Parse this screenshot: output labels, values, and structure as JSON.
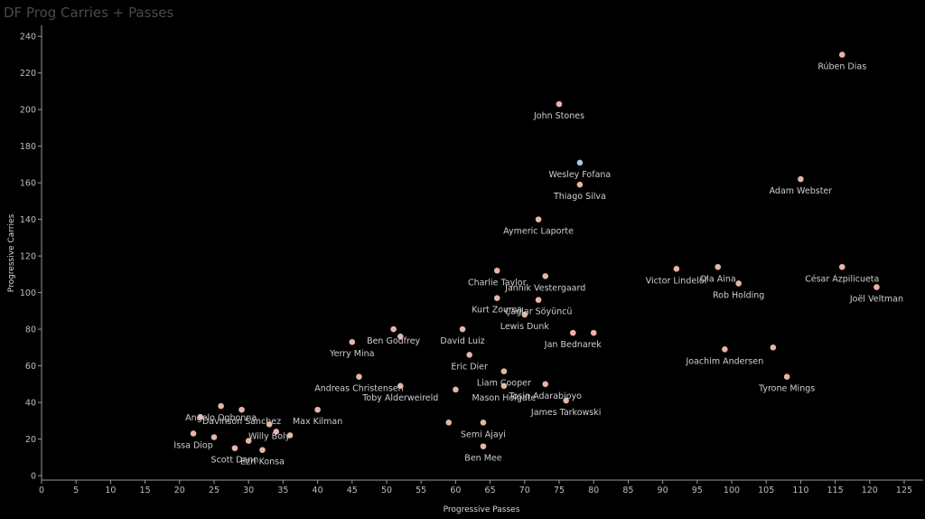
{
  "chart_data": {
    "type": "scatter",
    "title": "DF Prog Carries + Passes",
    "xlabel": "Progressive Passes",
    "ylabel": "Progressive Carries",
    "xlim": [
      0,
      127
    ],
    "ylim": [
      0,
      245
    ],
    "xticks": [
      0,
      5,
      10,
      15,
      20,
      25,
      30,
      35,
      40,
      45,
      50,
      55,
      60,
      65,
      70,
      75,
      80,
      85,
      90,
      95,
      100,
      105,
      110,
      115,
      120,
      125
    ],
    "yticks": [
      0,
      20,
      40,
      60,
      80,
      100,
      120,
      140,
      160,
      180,
      200,
      220,
      240
    ],
    "grid": false,
    "colors": {
      "point": "#e8b4a6",
      "highlight": "#9cc8ec",
      "background": "#000000"
    },
    "points": [
      {
        "label": "Rúben Dias",
        "x": 116,
        "y": 230,
        "color": "#e8b4a6"
      },
      {
        "label": "John Stones",
        "x": 75,
        "y": 203,
        "color": "#e8b4a6"
      },
      {
        "label": "Wesley Fofana",
        "x": 78,
        "y": 171,
        "color": "#9cc8ec"
      },
      {
        "label": "Thiago Silva",
        "x": 78,
        "y": 159,
        "color": "#e8b4a6"
      },
      {
        "label": "Adam Webster",
        "x": 110,
        "y": 162,
        "color": "#e8b4a6"
      },
      {
        "label": "Aymeric Laporte",
        "x": 72,
        "y": 140,
        "color": "#e8b4a6"
      },
      {
        "label": "Victor Lindelöf",
        "x": 92,
        "y": 113,
        "color": "#e8b4a6"
      },
      {
        "label": "Ola Aina",
        "x": 98,
        "y": 114,
        "color": "#e8b4a6"
      },
      {
        "label": "César Azpilicueta",
        "x": 116,
        "y": 114,
        "color": "#e8b4a6"
      },
      {
        "label": "Jannik Vestergaard",
        "x": 73,
        "y": 109,
        "color": "#e8b4a6"
      },
      {
        "label": "Charlie Taylor",
        "x": 66,
        "y": 112,
        "color": "#e8b4a6"
      },
      {
        "label": "Rob Holding",
        "x": 101,
        "y": 105,
        "color": "#e8b4a6"
      },
      {
        "label": "Joël Veltman",
        "x": 121,
        "y": 103,
        "color": "#e8b4a6"
      },
      {
        "label": "Kurt Zouma",
        "x": 66,
        "y": 97,
        "color": "#e8b4a6"
      },
      {
        "label": "Çağlar Söyüncü",
        "x": 72,
        "y": 96,
        "color": "#e8b4a6"
      },
      {
        "label": "Lewis Dunk",
        "x": 70,
        "y": 88,
        "color": "#e8b4a6"
      },
      {
        "label": "Ben Godfrey",
        "x": 51,
        "y": 80,
        "color": "#e8b4a6"
      },
      {
        "label": "",
        "x": 52,
        "y": 76,
        "color": "#e8b4a6"
      },
      {
        "label": "David Luiz",
        "x": 61,
        "y": 80,
        "color": "#e8b4a6"
      },
      {
        "label": "Jan Bednarek",
        "x": 77,
        "y": 78,
        "color": "#e8b4a6"
      },
      {
        "label": "",
        "x": 80,
        "y": 78,
        "color": "#e8b4a6"
      },
      {
        "label": "Yerry Mina",
        "x": 45,
        "y": 73,
        "color": "#e8b4a6"
      },
      {
        "label": "Joachim Andersen",
        "x": 99,
        "y": 69,
        "color": "#e8b4a6"
      },
      {
        "label": "",
        "x": 106,
        "y": 70,
        "color": "#e8b4a6"
      },
      {
        "label": "Eric Dier",
        "x": 62,
        "y": 66,
        "color": "#e8b4a6"
      },
      {
        "label": "Liam Cooper",
        "x": 67,
        "y": 57,
        "color": "#e8b4a6"
      },
      {
        "label": "Andreas Christensen",
        "x": 46,
        "y": 54,
        "color": "#e8b4a6"
      },
      {
        "label": "Tyrone Mings",
        "x": 108,
        "y": 54,
        "color": "#e8b4a6"
      },
      {
        "label": "Toby Alderweireld",
        "x": 52,
        "y": 49,
        "color": "#e8b4a6"
      },
      {
        "label": "",
        "x": 60,
        "y": 47,
        "color": "#e8b4a6"
      },
      {
        "label": "Mason Holgate",
        "x": 67,
        "y": 49,
        "color": "#e8b4a6"
      },
      {
        "label": "Tosin Adarabioyo",
        "x": 73,
        "y": 50,
        "color": "#e8b4a6"
      },
      {
        "label": "James Tarkowski",
        "x": 76,
        "y": 41,
        "color": "#e8b4a6"
      },
      {
        "label": "Angelo Ogbonna",
        "x": 26,
        "y": 38,
        "color": "#e8b4a6"
      },
      {
        "label": "",
        "x": 23,
        "y": 32,
        "color": "#e8b4a6"
      },
      {
        "label": "Davinson Sánchez",
        "x": 29,
        "y": 36,
        "color": "#e8b4a6"
      },
      {
        "label": "Max Kilman",
        "x": 40,
        "y": 36,
        "color": "#e8b4a6"
      },
      {
        "label": "Willy Boly",
        "x": 33,
        "y": 28,
        "color": "#e8b4a6"
      },
      {
        "label": "",
        "x": 34,
        "y": 24,
        "color": "#e8b4a6"
      },
      {
        "label": "",
        "x": 36,
        "y": 22,
        "color": "#e8b4a6"
      },
      {
        "label": "Issa Diop",
        "x": 22,
        "y": 23,
        "color": "#e8b4a6"
      },
      {
        "label": "",
        "x": 25,
        "y": 21,
        "color": "#e8b4a6"
      },
      {
        "label": "",
        "x": 30,
        "y": 19,
        "color": "#e8b4a6"
      },
      {
        "label": "Scott Dann",
        "x": 28,
        "y": 15,
        "color": "#e8b4a6"
      },
      {
        "label": "Ezri Konsa",
        "x": 32,
        "y": 14,
        "color": "#e8b4a6"
      },
      {
        "label": "Semi Ajayi",
        "x": 64,
        "y": 29,
        "color": "#e8b4a6"
      },
      {
        "label": "",
        "x": 59,
        "y": 29,
        "color": "#e8b4a6"
      },
      {
        "label": "Ben Mee",
        "x": 64,
        "y": 16,
        "color": "#e8b4a6"
      }
    ]
  }
}
